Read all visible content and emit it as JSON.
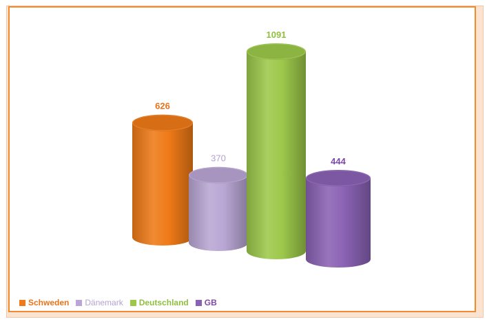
{
  "chart_data": {
    "type": "bar",
    "title": "",
    "xlabel": "",
    "ylabel": "",
    "categories": [
      "Schweden",
      "Dänemark",
      "Deutschland",
      "GB"
    ],
    "values": [
      626,
      370,
      1091,
      444
    ],
    "data_labels": [
      "626",
      "370",
      "1091",
      "444"
    ],
    "colors": [
      "#ef7a17",
      "#b9a6d4",
      "#9cc84a",
      "#8a62b4"
    ],
    "label_colors": [
      "#e8731a",
      "#b3a2d1",
      "#8fbf3f",
      "#7d48a8"
    ],
    "bar_style": "3d-cylinder",
    "legend_position": "bottom-left",
    "grid": false
  }
}
